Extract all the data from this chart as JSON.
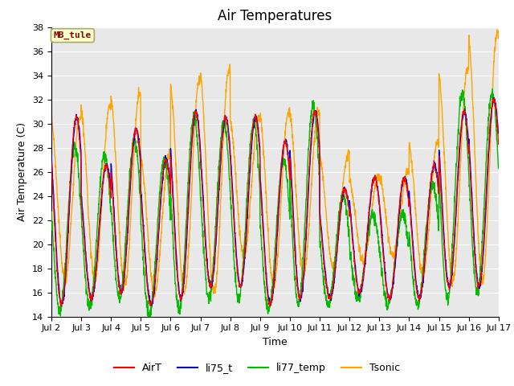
{
  "title": "Air Temperatures",
  "ylabel": "Air Temperature (C)",
  "xlabel": "Time",
  "ylim": [
    14,
    38
  ],
  "annotation_text": "MB_tule",
  "annotation_bg": "#FFFFCC",
  "annotation_border": "#AAAA66",
  "annotation_text_color": "#8B0000",
  "line_colors": {
    "AirT": "#FF0000",
    "li75_t": "#0000CD",
    "li77_temp": "#00BB00",
    "Tsonic": "#FFA500"
  },
  "plot_bg": "#E8E8E8",
  "fig_bg": "#FFFFFF",
  "grid_color": "#FFFFFF",
  "title_fontsize": 12,
  "axis_label_fontsize": 9,
  "tick_fontsize": 8,
  "n_days": 15,
  "points_per_day": 144,
  "tsonic_phase_hours": 3.0,
  "base_phase_hours": 0.5,
  "li77_phase_hours": -1.0,
  "peak_hour": 14.0,
  "day_max_base": [
    30.5,
    26.5,
    29.5,
    27.0,
    31.0,
    30.5,
    30.5,
    28.5,
    31.0,
    24.5,
    25.5,
    25.5,
    26.5,
    31.0,
    32.0,
    28.0
  ],
  "day_min_base": [
    15.0,
    15.5,
    16.0,
    15.0,
    15.5,
    16.5,
    16.5,
    15.0,
    15.5,
    15.5,
    16.0,
    15.5,
    15.5,
    16.5,
    16.5,
    18.5
  ],
  "tsonic_day_max": [
    30.5,
    31.5,
    32.5,
    27.5,
    33.5,
    34.5,
    30.5,
    31.0,
    31.0,
    27.5,
    25.5,
    26.0,
    28.5,
    34.5,
    37.5,
    31.0
  ],
  "tsonic_day_min": [
    17.0,
    17.0,
    16.5,
    16.0,
    16.0,
    16.0,
    19.0,
    16.5,
    17.5,
    18.0,
    18.5,
    19.0,
    17.5,
    17.0,
    17.0,
    19.5
  ],
  "li77_day_max": [
    28.0,
    27.5,
    28.5,
    27.0,
    30.5,
    30.0,
    30.0,
    27.0,
    31.5,
    24.0,
    22.5,
    22.5,
    25.0,
    32.5,
    32.5,
    27.0
  ],
  "li77_day_min": [
    14.5,
    14.8,
    15.5,
    14.2,
    14.5,
    15.5,
    15.5,
    14.5,
    15.0,
    15.0,
    15.5,
    15.0,
    15.0,
    15.5,
    16.0,
    18.0
  ]
}
